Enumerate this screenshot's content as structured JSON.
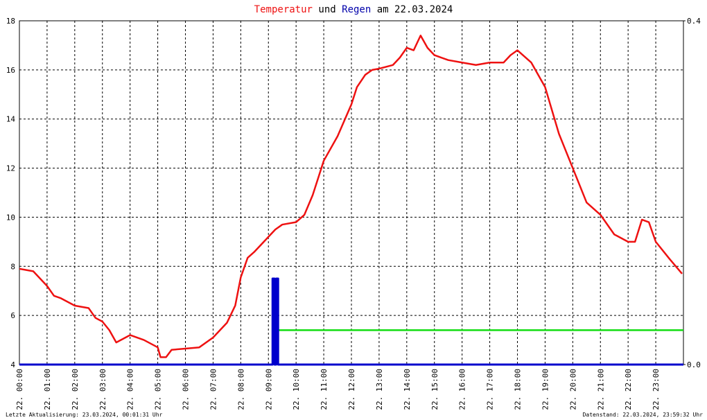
{
  "chart_data": {
    "type": "line",
    "title_mid": "und",
    "title_end": "am 22.03.2024",
    "footer_left": "Letzte Aktualisierung: 23.03.2024, 00:01:31 Uhr",
    "footer_right": "Datenstand: 22.03.2024, 23:59:32 Uhr",
    "xlim": [
      0,
      24
    ],
    "xticks": [
      {
        "value": 0,
        "label": "22. 00:00"
      },
      {
        "value": 1,
        "label": "22. 01:00"
      },
      {
        "value": 2,
        "label": "22. 02:00"
      },
      {
        "value": 3,
        "label": "22. 03:00"
      },
      {
        "value": 4,
        "label": "22. 04:00"
      },
      {
        "value": 5,
        "label": "22. 05:00"
      },
      {
        "value": 6,
        "label": "22. 06:00"
      },
      {
        "value": 7,
        "label": "22. 07:00"
      },
      {
        "value": 8,
        "label": "22. 08:00"
      },
      {
        "value": 9,
        "label": "22. 09:00"
      },
      {
        "value": 10,
        "label": "22. 10:00"
      },
      {
        "value": 11,
        "label": "22. 11:00"
      },
      {
        "value": 12,
        "label": "22. 12:00"
      },
      {
        "value": 13,
        "label": "22. 13:00"
      },
      {
        "value": 14,
        "label": "22. 14:00"
      },
      {
        "value": 15,
        "label": "22. 15:00"
      },
      {
        "value": 16,
        "label": "22. 16:00"
      },
      {
        "value": 17,
        "label": "22. 17:00"
      },
      {
        "value": 18,
        "label": "22. 18:00"
      },
      {
        "value": 19,
        "label": "22. 19:00"
      },
      {
        "value": 20,
        "label": "22. 20:00"
      },
      {
        "value": 21,
        "label": "22. 21:00"
      },
      {
        "value": 22,
        "label": "22. 22:00"
      },
      {
        "value": 23,
        "label": "22. 23:00"
      }
    ],
    "ylim": [
      4,
      18
    ],
    "yticks": [
      4,
      6,
      8,
      10,
      12,
      14,
      16,
      18
    ],
    "y2lim": [
      0,
      0.4
    ],
    "y2ticks": [
      {
        "value": 0,
        "label": "0.0"
      },
      0.4
    ],
    "grid": true,
    "series": [
      {
        "name": "Temperatur",
        "color": "#ee1111",
        "x": [
          0,
          0.25,
          0.5,
          1,
          1.25,
          1.5,
          2,
          2.5,
          2.75,
          3,
          3.25,
          3.5,
          4,
          4.5,
          5,
          5.1,
          5.3,
          5.5,
          6,
          6.5,
          7,
          7.5,
          7.8,
          8,
          8.25,
          8.5,
          9,
          9.25,
          9.5,
          10,
          10.3,
          10.6,
          11,
          11.5,
          12,
          12.2,
          12.5,
          12.75,
          13,
          13.5,
          13.75,
          14,
          14.25,
          14.5,
          14.75,
          15,
          15.5,
          16,
          16.5,
          17,
          17.5,
          17.75,
          18,
          18.5,
          19,
          19.5,
          20,
          20.5,
          21,
          21.5,
          22,
          22.25,
          22.5,
          22.75,
          23,
          23.5,
          23.95
        ],
        "values": [
          7.9,
          7.85,
          7.8,
          7.2,
          6.8,
          6.7,
          6.4,
          6.3,
          5.9,
          5.75,
          5.4,
          4.9,
          5.2,
          5.0,
          4.7,
          4.3,
          4.3,
          4.6,
          4.65,
          4.7,
          5.1,
          5.7,
          6.4,
          7.55,
          8.35,
          8.6,
          9.2,
          9.5,
          9.7,
          9.8,
          10.1,
          10.9,
          12.3,
          13.3,
          14.6,
          15.3,
          15.8,
          16.0,
          16.05,
          16.2,
          16.5,
          16.9,
          16.8,
          17.4,
          16.9,
          16.6,
          16.4,
          16.3,
          16.2,
          16.3,
          16.3,
          16.6,
          16.8,
          16.3,
          15.3,
          13.4,
          12.0,
          10.6,
          10.1,
          9.3,
          9.0,
          9.0,
          9.9,
          9.8,
          9.0,
          8.3,
          7.7
        ]
      },
      {
        "name": "Regen",
        "color": "#0000cc",
        "axis": "y2",
        "x": [
          0,
          9.15,
          9.15,
          9.22,
          9.22,
          9.28,
          9.28,
          9.35,
          9.35,
          24
        ],
        "values": [
          0,
          0,
          0.1,
          0.1,
          0,
          0,
          0.1,
          0.1,
          0,
          0
        ]
      },
      {
        "color": "#11dd11",
        "axis": "y2",
        "x": [
          9.35,
          24
        ],
        "values": [
          0.04,
          0.04
        ]
      }
    ]
  }
}
